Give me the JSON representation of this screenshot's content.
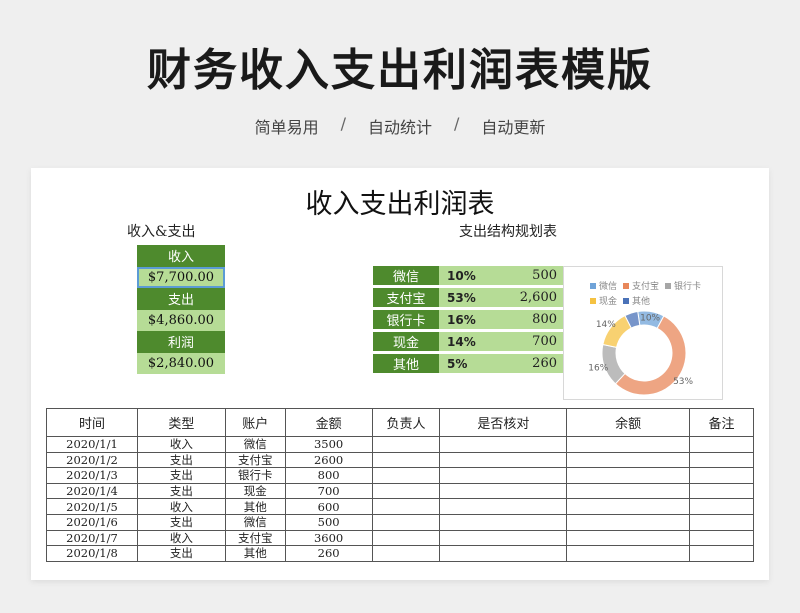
{
  "header": {
    "title": "财务收入支出利润表模版",
    "subtitle": [
      "简单易用",
      "自动统计",
      "自动更新"
    ],
    "separator": "/"
  },
  "sheet": {
    "title": "收入支出利润表",
    "summary": {
      "label": "收入&支出",
      "items": [
        {
          "head": "收入",
          "value": "$7,700.00"
        },
        {
          "head": "支出",
          "value": "$4,860.00"
        },
        {
          "head": "利润",
          "value": "$2,840.00"
        }
      ]
    },
    "structure": {
      "label": "支出结构规划表",
      "rows": [
        {
          "name": "微信",
          "pct": "10%",
          "amount": "500"
        },
        {
          "name": "支付宝",
          "pct": "53%",
          "amount": "2,600"
        },
        {
          "name": "银行卡",
          "pct": "16%",
          "amount": "800"
        },
        {
          "name": "现金",
          "pct": "14%",
          "amount": "700"
        },
        {
          "name": "其他",
          "pct": "5%",
          "amount": "260"
        }
      ]
    },
    "ledger": {
      "columns": [
        "时间",
        "类型",
        "账户",
        "金额",
        "负责人",
        "是否核对",
        "余额",
        "备注"
      ],
      "rows": [
        [
          "2020/1/1",
          "收入",
          "微信",
          "3500",
          "",
          "",
          "",
          ""
        ],
        [
          "2020/1/2",
          "支出",
          "支付宝",
          "2600",
          "",
          "",
          "",
          ""
        ],
        [
          "2020/1/3",
          "支出",
          "银行卡",
          "800",
          "",
          "",
          "",
          ""
        ],
        [
          "2020/1/4",
          "支出",
          "现金",
          "700",
          "",
          "",
          "",
          ""
        ],
        [
          "2020/1/5",
          "收入",
          "其他",
          "600",
          "",
          "",
          "",
          ""
        ],
        [
          "2020/1/6",
          "支出",
          "微信",
          "500",
          "",
          "",
          "",
          ""
        ],
        [
          "2020/1/7",
          "收入",
          "支付宝",
          "3600",
          "",
          "",
          "",
          ""
        ],
        [
          "2020/1/8",
          "支出",
          "其他",
          "260",
          "",
          "",
          "",
          ""
        ]
      ]
    }
  },
  "chart_data": {
    "type": "pie",
    "categories": [
      "微信",
      "支付宝",
      "银行卡",
      "现金",
      "其他"
    ],
    "values": [
      10,
      53,
      16,
      14,
      5
    ],
    "data_labels": [
      "10%",
      "53%",
      "16%",
      "14%",
      ""
    ],
    "colors": [
      "#6fa3d8",
      "#e8875a",
      "#a6a6a6",
      "#f5c242",
      "#4a72b8"
    ],
    "legend_position": "top"
  }
}
